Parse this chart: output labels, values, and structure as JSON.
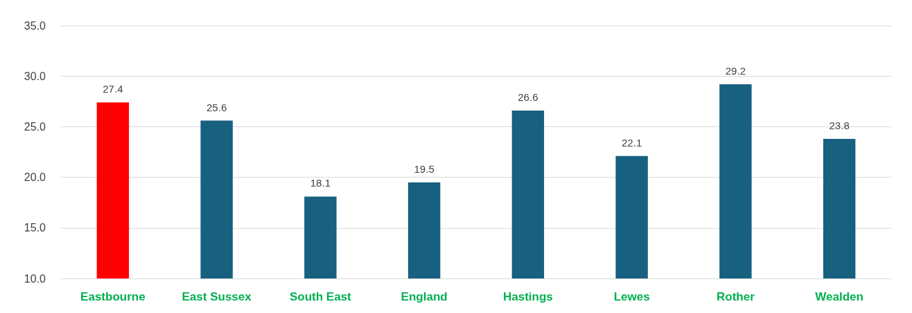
{
  "chart_data": {
    "type": "bar",
    "categories": [
      "Eastbourne",
      "East Sussex",
      "South East",
      "England",
      "Hastings",
      "Lewes",
      "Rother",
      "Wealden"
    ],
    "values": [
      27.4,
      25.6,
      18.1,
      19.5,
      26.6,
      22.1,
      29.2,
      23.8
    ],
    "colors": [
      "#ff0000",
      "#17607f",
      "#17607f",
      "#17607f",
      "#17607f",
      "#17607f",
      "#17607f",
      "#17607f"
    ],
    "ylim": [
      10,
      35
    ],
    "yticks": [
      {
        "value": 10,
        "label": "10.0"
      },
      {
        "value": 15,
        "label": "15.0"
      },
      {
        "value": 20,
        "label": "20.0"
      },
      {
        "value": 25,
        "label": "25.0"
      },
      {
        "value": 30,
        "label": "30.0"
      },
      {
        "value": 35,
        "label": "35.0"
      }
    ],
    "grid": "y",
    "data_labels": true
  }
}
